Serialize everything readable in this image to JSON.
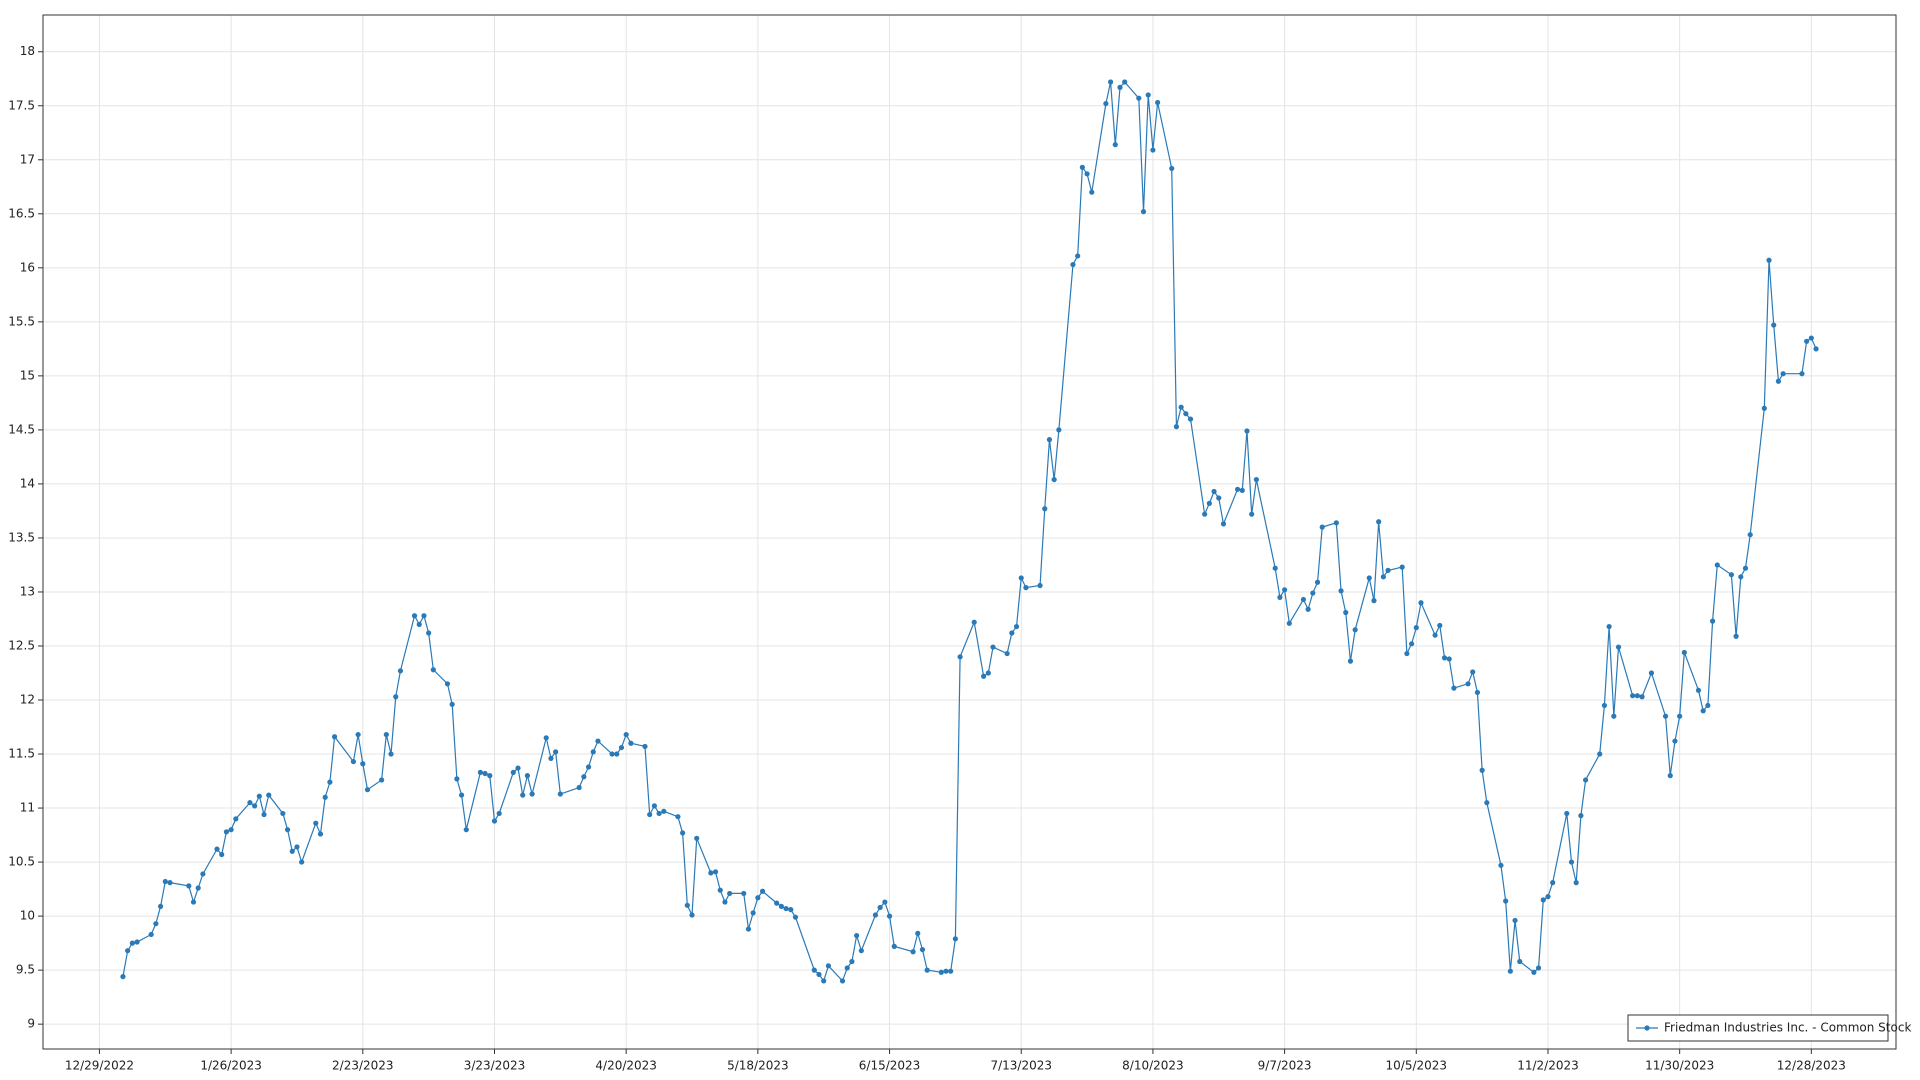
{
  "chart_data": {
    "type": "line",
    "x": [
      "1/3/2023",
      "1/4/2023",
      "1/5/2023",
      "1/6/2023",
      "1/9/2023",
      "1/10/2023",
      "1/11/2023",
      "1/12/2023",
      "1/13/2023",
      "1/17/2023",
      "1/18/2023",
      "1/19/2023",
      "1/20/2023",
      "1/23/2023",
      "1/24/2023",
      "1/25/2023",
      "1/26/2023",
      "1/27/2023",
      "1/30/2023",
      "1/31/2023",
      "2/1/2023",
      "2/2/2023",
      "2/3/2023",
      "2/6/2023",
      "2/7/2023",
      "2/8/2023",
      "2/9/2023",
      "2/10/2023",
      "2/13/2023",
      "2/14/2023",
      "2/15/2023",
      "2/16/2023",
      "2/17/2023",
      "2/21/2023",
      "2/22/2023",
      "2/23/2023",
      "2/24/2023",
      "2/27/2023",
      "2/28/2023",
      "3/1/2023",
      "3/2/2023",
      "3/3/2023",
      "3/6/2023",
      "3/7/2023",
      "3/8/2023",
      "3/9/2023",
      "3/10/2023",
      "3/13/2023",
      "3/14/2023",
      "3/15/2023",
      "3/16/2023",
      "3/17/2023",
      "3/20/2023",
      "3/21/2023",
      "3/22/2023",
      "3/23/2023",
      "3/24/2023",
      "3/27/2023",
      "3/28/2023",
      "3/29/2023",
      "3/30/2023",
      "3/31/2023",
      "4/3/2023",
      "4/4/2023",
      "4/5/2023",
      "4/6/2023",
      "4/10/2023",
      "4/11/2023",
      "4/12/2023",
      "4/13/2023",
      "4/14/2023",
      "4/17/2023",
      "4/18/2023",
      "4/19/2023",
      "4/20/2023",
      "4/21/2023",
      "4/24/2023",
      "4/25/2023",
      "4/26/2023",
      "4/27/2023",
      "4/28/2023",
      "5/1/2023",
      "5/2/2023",
      "5/3/2023",
      "5/4/2023",
      "5/5/2023",
      "5/8/2023",
      "5/9/2023",
      "5/10/2023",
      "5/11/2023",
      "5/12/2023",
      "5/15/2023",
      "5/16/2023",
      "5/17/2023",
      "5/18/2023",
      "5/19/2023",
      "5/22/2023",
      "5/23/2023",
      "5/24/2023",
      "5/25/2023",
      "5/26/2023",
      "5/30/2023",
      "5/31/2023",
      "6/1/2023",
      "6/2/2023",
      "6/5/2023",
      "6/6/2023",
      "6/7/2023",
      "6/8/2023",
      "6/9/2023",
      "6/12/2023",
      "6/13/2023",
      "6/14/2023",
      "6/15/2023",
      "6/16/2023",
      "6/20/2023",
      "6/21/2023",
      "6/22/2023",
      "6/23/2023",
      "6/26/2023",
      "6/27/2023",
      "6/28/2023",
      "6/29/2023",
      "6/30/2023",
      "7/3/2023",
      "7/5/2023",
      "7/6/2023",
      "7/7/2023",
      "7/10/2023",
      "7/11/2023",
      "7/12/2023",
      "7/13/2023",
      "7/14/2023",
      "7/17/2023",
      "7/18/2023",
      "7/19/2023",
      "7/20/2023",
      "7/21/2023",
      "7/24/2023",
      "7/25/2023",
      "7/26/2023",
      "7/27/2023",
      "7/28/2023",
      "7/31/2023",
      "8/1/2023",
      "8/2/2023",
      "8/3/2023",
      "8/4/2023",
      "8/7/2023",
      "8/8/2023",
      "8/9/2023",
      "8/10/2023",
      "8/11/2023",
      "8/14/2023",
      "8/15/2023",
      "8/16/2023",
      "8/17/2023",
      "8/18/2023",
      "8/21/2023",
      "8/22/2023",
      "8/23/2023",
      "8/24/2023",
      "8/25/2023",
      "8/28/2023",
      "8/29/2023",
      "8/30/2023",
      "8/31/2023",
      "9/1/2023",
      "9/5/2023",
      "9/6/2023",
      "9/7/2023",
      "9/8/2023",
      "9/11/2023",
      "9/12/2023",
      "9/13/2023",
      "9/14/2023",
      "9/15/2023",
      "9/18/2023",
      "9/19/2023",
      "9/20/2023",
      "9/21/2023",
      "9/22/2023",
      "9/25/2023",
      "9/26/2023",
      "9/27/2023",
      "9/28/2023",
      "9/29/2023",
      "10/2/2023",
      "10/3/2023",
      "10/4/2023",
      "10/5/2023",
      "10/6/2023",
      "10/9/2023",
      "10/10/2023",
      "10/11/2023",
      "10/12/2023",
      "10/13/2023",
      "10/16/2023",
      "10/17/2023",
      "10/18/2023",
      "10/19/2023",
      "10/20/2023",
      "10/23/2023",
      "10/24/2023",
      "10/25/2023",
      "10/26/2023",
      "10/27/2023",
      "10/30/2023",
      "10/31/2023",
      "11/1/2023",
      "11/2/2023",
      "11/3/2023",
      "11/6/2023",
      "11/7/2023",
      "11/8/2023",
      "11/9/2023",
      "11/10/2023",
      "11/13/2023",
      "11/14/2023",
      "11/15/2023",
      "11/16/2023",
      "11/17/2023",
      "11/20/2023",
      "11/21/2023",
      "11/22/2023",
      "11/24/2023",
      "11/27/2023",
      "11/28/2023",
      "11/29/2023",
      "11/30/2023",
      "12/1/2023",
      "12/4/2023",
      "12/5/2023",
      "12/6/2023",
      "12/7/2023",
      "12/8/2023",
      "12/11/2023",
      "12/12/2023",
      "12/13/2023",
      "12/14/2023",
      "12/15/2023",
      "12/18/2023",
      "12/19/2023",
      "12/20/2023",
      "12/21/2023",
      "12/22/2023",
      "12/26/2023",
      "12/27/2023",
      "12/28/2023",
      "12/29/2023"
    ],
    "series": [
      {
        "name": "Friedman Industries Inc. - Common Stock",
        "color": "#2a7ab8",
        "values": [
          9.44,
          9.68,
          9.75,
          9.76,
          9.83,
          9.93,
          10.09,
          10.32,
          10.31,
          10.28,
          10.13,
          10.26,
          10.39,
          10.62,
          10.57,
          10.78,
          10.8,
          10.9,
          11.05,
          11.02,
          11.11,
          10.94,
          11.12,
          10.95,
          10.8,
          10.6,
          10.64,
          10.5,
          10.86,
          10.76,
          11.1,
          11.24,
          11.66,
          11.43,
          11.68,
          11.41,
          11.17,
          11.26,
          11.68,
          11.5,
          12.03,
          12.27,
          12.78,
          12.7,
          12.78,
          12.62,
          12.28,
          12.15,
          11.96,
          11.27,
          11.12,
          10.8,
          11.33,
          11.32,
          11.3,
          10.88,
          10.95,
          11.33,
          11.37,
          11.12,
          11.3,
          11.13,
          11.65,
          11.46,
          11.52,
          11.13,
          11.19,
          11.29,
          11.38,
          11.52,
          11.62,
          11.5,
          11.5,
          11.56,
          11.68,
          11.6,
          11.57,
          10.94,
          11.02,
          10.95,
          10.97,
          10.92,
          10.77,
          10.1,
          10.01,
          10.72,
          10.4,
          10.41,
          10.24,
          10.13,
          10.21,
          10.21,
          9.88,
          10.03,
          10.17,
          10.23,
          10.12,
          10.09,
          10.07,
          10.06,
          9.99,
          9.5,
          9.46,
          9.4,
          9.54,
          9.4,
          9.52,
          9.58,
          9.82,
          9.68,
          10.01,
          10.08,
          10.13,
          10.0,
          9.72,
          9.67,
          9.84,
          9.69,
          9.5,
          9.48,
          9.49,
          9.49,
          9.79,
          12.4,
          12.72,
          12.22,
          12.25,
          12.49,
          12.43,
          12.62,
          12.68,
          13.13,
          13.04,
          13.06,
          13.77,
          14.41,
          14.04,
          14.5,
          16.03,
          16.11,
          16.93,
          16.87,
          16.7,
          17.52,
          17.72,
          17.14,
          17.67,
          17.72,
          17.57,
          16.52,
          17.6,
          17.09,
          17.53,
          16.92,
          14.53,
          14.71,
          14.65,
          14.6,
          13.72,
          13.82,
          13.93,
          13.87,
          13.63,
          13.95,
          13.94,
          14.49,
          13.72,
          14.04,
          13.22,
          12.95,
          13.02,
          12.71,
          12.93,
          12.84,
          12.99,
          13.09,
          13.6,
          13.64,
          13.01,
          12.81,
          12.36,
          12.65,
          13.13,
          12.92,
          13.65,
          13.14,
          13.2,
          13.23,
          12.43,
          12.52,
          12.67,
          12.9,
          12.6,
          12.69,
          12.39,
          12.38,
          12.11,
          12.15,
          12.26,
          12.07,
          11.35,
          11.05,
          10.47,
          10.14,
          9.49,
          9.96,
          9.58,
          9.48,
          9.52,
          10.15,
          10.18,
          10.31,
          10.95,
          10.5,
          10.31,
          10.93,
          11.26,
          11.5,
          11.95,
          12.68,
          11.85,
          12.49,
          12.04,
          12.04,
          12.03,
          12.25,
          11.85,
          11.3,
          11.62,
          11.85,
          12.44,
          12.09,
          11.9,
          11.95,
          12.73,
          13.25,
          13.16,
          12.59,
          13.14,
          13.22,
          13.53,
          14.7,
          16.07,
          15.47,
          14.95,
          15.02,
          15.02,
          15.32,
          15.35,
          15.25
        ]
      }
    ],
    "xlim": [
      "12/17/2022",
      "1/15/2024"
    ],
    "xticks": [
      "12/29/2022",
      "1/26/2023",
      "2/23/2023",
      "3/23/2023",
      "4/20/2023",
      "5/18/2023",
      "6/15/2023",
      "7/13/2023",
      "8/10/2023",
      "9/7/2023",
      "10/5/2023",
      "11/2/2023",
      "11/30/2023",
      "12/28/2023"
    ],
    "ylim": [
      8.77,
      18.34
    ],
    "yticks": [
      9,
      9.5,
      10,
      10.5,
      11,
      11.5,
      12,
      12.5,
      13,
      13.5,
      14,
      14.5,
      15,
      15.5,
      16,
      16.5,
      17,
      17.5,
      18
    ],
    "grid": true,
    "legend": "lower right"
  }
}
